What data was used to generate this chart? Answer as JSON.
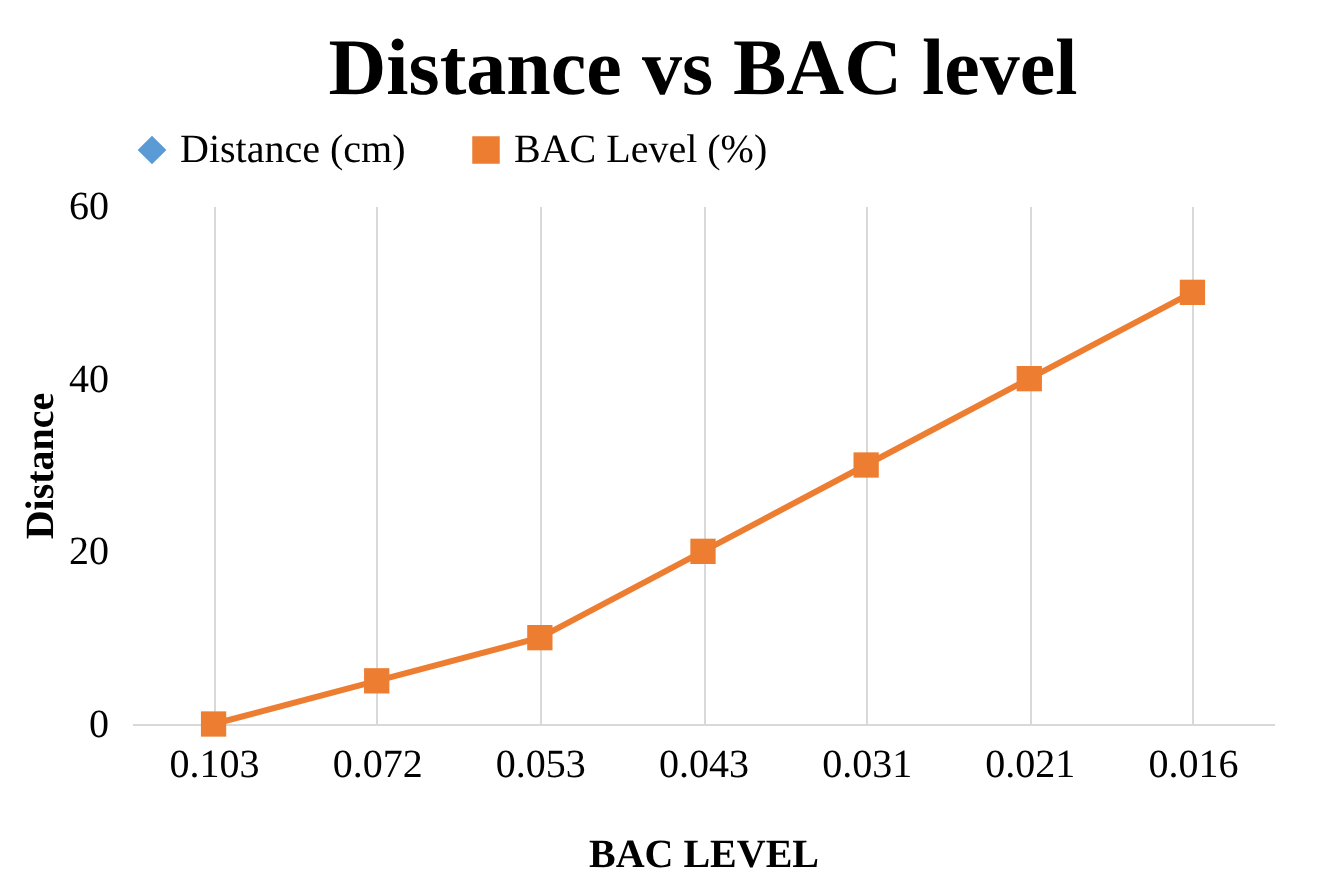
{
  "chart_data": {
    "type": "line",
    "title": "Distance vs BAC level",
    "xlabel": "BAC LEVEL",
    "ylabel": "Distance",
    "categories": [
      "0.103",
      "0.072",
      "0.053",
      "0.043",
      "0.031",
      "0.021",
      "0.016"
    ],
    "series": [
      {
        "name": "Distance (cm)",
        "color": "#5b9bd5",
        "marker": "diamond",
        "values": [
          null,
          null,
          null,
          null,
          null,
          null,
          null
        ]
      },
      {
        "name": "BAC Level (%)",
        "color": "#ed7d31",
        "marker": "square",
        "values": [
          0,
          5,
          10,
          20,
          30,
          40,
          50
        ]
      }
    ],
    "ylim": [
      0,
      60
    ],
    "yticks": [
      0,
      20,
      40,
      60
    ],
    "grid": "x",
    "legend": "top",
    "line_style": "solid"
  }
}
